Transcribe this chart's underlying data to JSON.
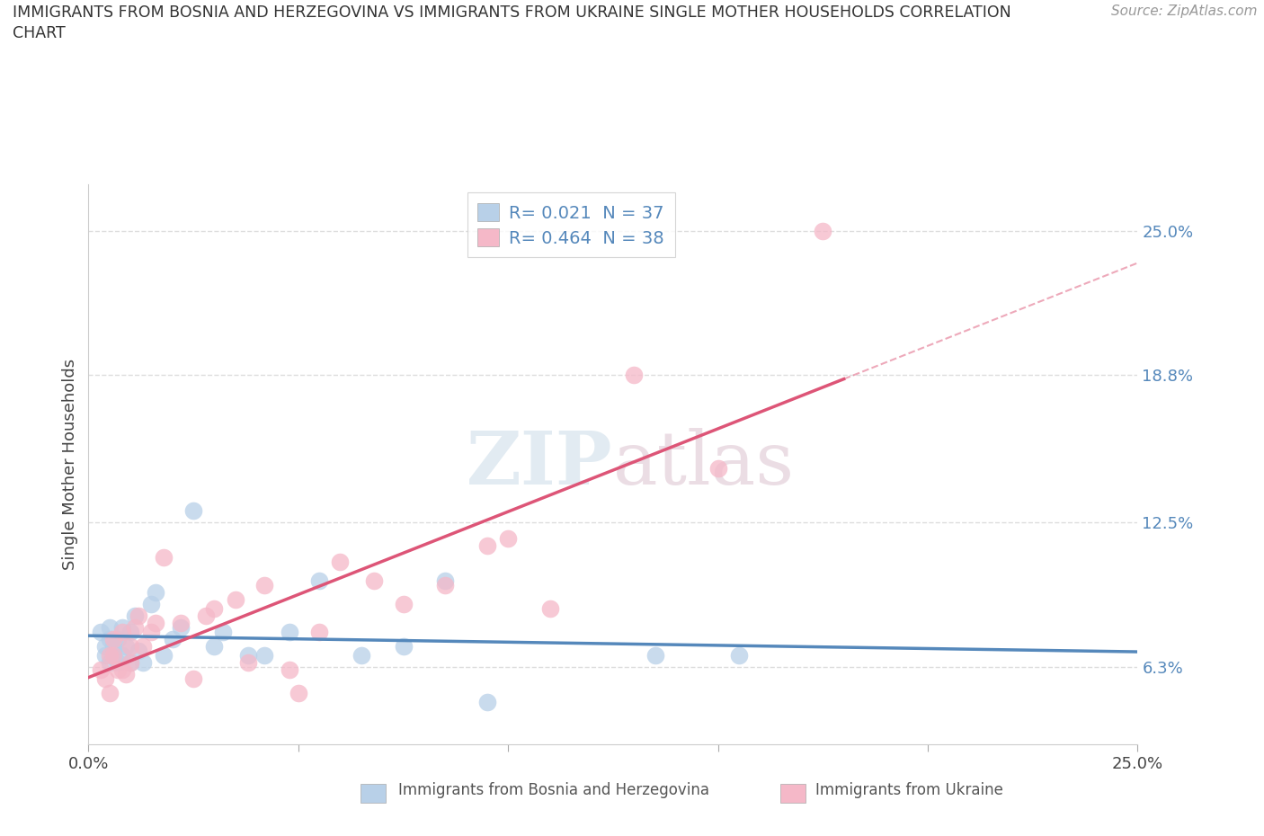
{
  "title": "IMMIGRANTS FROM BOSNIA AND HERZEGOVINA VS IMMIGRANTS FROM UKRAINE SINGLE MOTHER HOUSEHOLDS CORRELATION\nCHART",
  "source_text": "Source: ZipAtlas.com",
  "ylabel": "Single Mother Households",
  "xlabel": "",
  "xlim": [
    0.0,
    0.25
  ],
  "ylim": [
    0.03,
    0.27
  ],
  "xtick_positions": [
    0.0,
    0.05,
    0.1,
    0.15,
    0.2,
    0.25
  ],
  "xtick_labels_edge": [
    "0.0%",
    "",
    "",
    "",
    "",
    "25.0%"
  ],
  "ytick_labels": [
    "6.3%",
    "12.5%",
    "18.8%",
    "25.0%"
  ],
  "ytick_values": [
    0.063,
    0.125,
    0.188,
    0.25
  ],
  "background_color": "#ffffff",
  "grid_color": "#dddddd",
  "bosnia_color": "#b8d0e8",
  "ukraine_color": "#f5b8c8",
  "bosnia_line_color": "#5588bb",
  "ukraine_line_color": "#dd5577",
  "R_bosnia": 0.021,
  "N_bosnia": 37,
  "R_ukraine": 0.464,
  "N_ukraine": 38,
  "bosnia_x": [
    0.003,
    0.004,
    0.004,
    0.005,
    0.005,
    0.005,
    0.006,
    0.006,
    0.006,
    0.007,
    0.007,
    0.008,
    0.008,
    0.009,
    0.01,
    0.01,
    0.011,
    0.012,
    0.013,
    0.015,
    0.016,
    0.018,
    0.02,
    0.022,
    0.025,
    0.03,
    0.032,
    0.038,
    0.042,
    0.048,
    0.055,
    0.065,
    0.075,
    0.085,
    0.095,
    0.135,
    0.155
  ],
  "bosnia_y": [
    0.078,
    0.072,
    0.068,
    0.08,
    0.075,
    0.065,
    0.07,
    0.068,
    0.072,
    0.075,
    0.065,
    0.068,
    0.08,
    0.072,
    0.078,
    0.065,
    0.085,
    0.07,
    0.065,
    0.09,
    0.095,
    0.068,
    0.075,
    0.08,
    0.13,
    0.072,
    0.078,
    0.068,
    0.068,
    0.078,
    0.1,
    0.068,
    0.072,
    0.1,
    0.048,
    0.068,
    0.068
  ],
  "ukraine_x": [
    0.003,
    0.004,
    0.005,
    0.005,
    0.006,
    0.006,
    0.007,
    0.008,
    0.008,
    0.009,
    0.01,
    0.01,
    0.011,
    0.012,
    0.013,
    0.015,
    0.016,
    0.018,
    0.022,
    0.025,
    0.028,
    0.03,
    0.035,
    0.038,
    0.042,
    0.048,
    0.05,
    0.055,
    0.06,
    0.068,
    0.075,
    0.085,
    0.095,
    0.1,
    0.11,
    0.13,
    0.15,
    0.175
  ],
  "ukraine_y": [
    0.062,
    0.058,
    0.068,
    0.052,
    0.075,
    0.068,
    0.062,
    0.062,
    0.078,
    0.06,
    0.065,
    0.072,
    0.08,
    0.085,
    0.072,
    0.078,
    0.082,
    0.11,
    0.082,
    0.058,
    0.085,
    0.088,
    0.092,
    0.065,
    0.098,
    0.062,
    0.052,
    0.078,
    0.108,
    0.1,
    0.09,
    0.098,
    0.115,
    0.118,
    0.088,
    0.188,
    0.148,
    0.25
  ]
}
